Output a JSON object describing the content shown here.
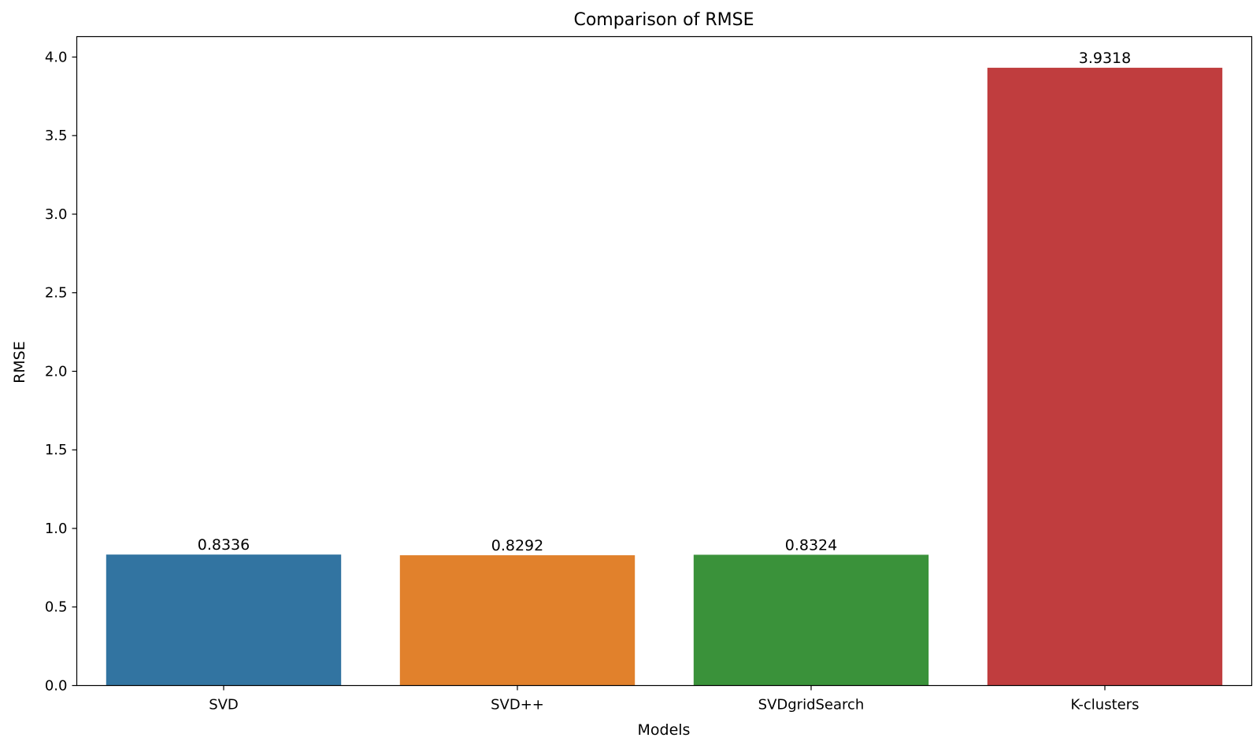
{
  "chart_data": {
    "type": "bar",
    "title": "Comparison of RMSE",
    "xlabel": "Models",
    "ylabel": "RMSE",
    "categories": [
      "SVD",
      "SVD++",
      "SVDgridSearch",
      "K-clusters"
    ],
    "values": [
      0.8336,
      0.8292,
      0.8324,
      3.9318
    ],
    "data_labels": [
      "0.8336",
      "0.8292",
      "0.8324",
      "3.9318"
    ],
    "colors": [
      "#3274a1",
      "#e1812c",
      "#3a923a",
      "#c03d3e"
    ],
    "ylim": [
      0,
      4.13
    ],
    "yticks": [
      0.0,
      0.5,
      1.0,
      1.5,
      2.0,
      2.5,
      3.0,
      3.5,
      4.0
    ],
    "ytick_labels": [
      "0.0",
      "0.5",
      "1.0",
      "1.5",
      "2.0",
      "2.5",
      "3.0",
      "3.5",
      "4.0"
    ],
    "grid": false,
    "legend": "none"
  }
}
